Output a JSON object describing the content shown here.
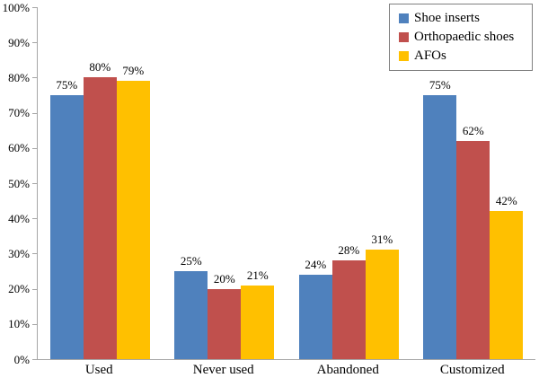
{
  "chart_data": {
    "type": "bar",
    "title": "",
    "xlabel": "",
    "ylabel": "",
    "categories": [
      "Used",
      "Never used",
      "Abandoned",
      "Customized"
    ],
    "series": [
      {
        "name": "Shoe inserts",
        "color": "#4F81BD",
        "values": [
          75,
          25,
          24,
          75
        ],
        "labels": [
          "75%",
          "25%",
          "24%",
          "75%"
        ]
      },
      {
        "name": "Orthopaedic shoes",
        "color": "#C0504D",
        "values": [
          80,
          20,
          28,
          62
        ],
        "labels": [
          "80%",
          "20%",
          "28%",
          "62%"
        ]
      },
      {
        "name": "AFOs",
        "color": "#FFC000",
        "values": [
          79,
          21,
          31,
          42
        ],
        "labels": [
          "79%",
          "21%",
          "31%",
          "42%"
        ]
      }
    ],
    "ylim": [
      0,
      100
    ],
    "ytick_step": 10,
    "ytick_labels": [
      "100%",
      "90%",
      "80%",
      "70%",
      "60%",
      "50%",
      "40%",
      "30%",
      "20%",
      "10%",
      "0%"
    ],
    "grid": false,
    "legend_position": "top-right",
    "axis_color": "#A6A6A6",
    "legend_border_color": "#808080",
    "text_color": "#000000"
  }
}
